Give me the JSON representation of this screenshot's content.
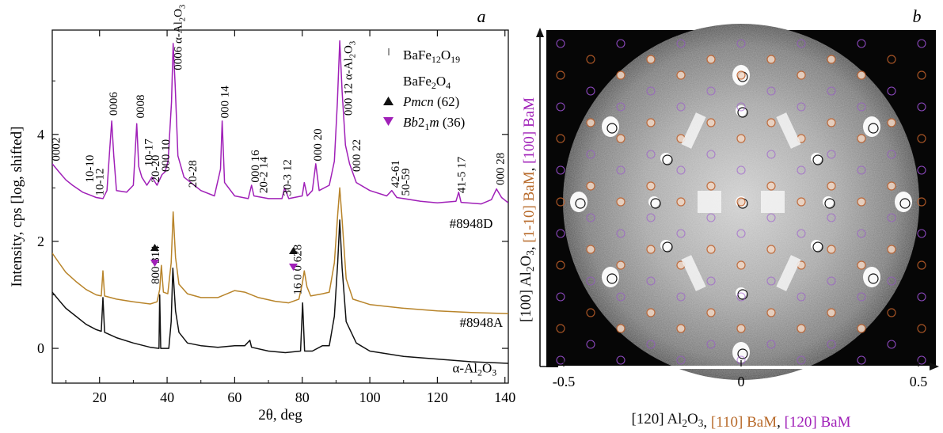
{
  "panels": {
    "a_label": "a",
    "b_label": "b"
  },
  "chart_data": [
    {
      "type": "line",
      "panel": "a",
      "xlabel": "2θ, deg",
      "ylabel": "Intensity, cps [log, shifted]",
      "xlim": [
        6,
        141
      ],
      "ylim": [
        -0.65,
        5.95
      ],
      "xticks": [
        20,
        40,
        60,
        80,
        100,
        120,
        140
      ],
      "yticks": [
        0,
        2,
        4
      ],
      "series": [
        {
          "name": "#8948D",
          "color": "#a020b8",
          "points": [
            [
              6,
              3.45
            ],
            [
              8,
              3.3
            ],
            [
              10,
              3.15
            ],
            [
              12,
              3.05
            ],
            [
              15,
              2.92
            ],
            [
              17,
              2.87
            ],
            [
              19,
              2.82
            ],
            [
              21,
              2.8
            ],
            [
              22.2,
              2.95
            ],
            [
              23,
              3.7
            ],
            [
              23.6,
              4.25
            ],
            [
              24.2,
              3.6
            ],
            [
              25,
              2.95
            ],
            [
              28,
              2.92
            ],
            [
              30,
              3.05
            ],
            [
              31,
              4.2
            ],
            [
              31.6,
              3.4
            ],
            [
              32.5,
              3.2
            ],
            [
              34,
              3.05
            ],
            [
              35.5,
              3.2
            ],
            [
              37,
              3.05
            ],
            [
              38.5,
              3.25
            ],
            [
              39.4,
              3.3
            ],
            [
              40.3,
              3.5
            ],
            [
              41.3,
              4.6
            ],
            [
              41.8,
              5.7
            ],
            [
              42.4,
              4.9
            ],
            [
              43.2,
              3.6
            ],
            [
              45,
              3.2
            ],
            [
              50,
              2.95
            ],
            [
              54,
              2.85
            ],
            [
              55.8,
              3.35
            ],
            [
              56.3,
              4.25
            ],
            [
              57,
              3.1
            ],
            [
              60,
              2.85
            ],
            [
              64,
              2.8
            ],
            [
              65,
              3.05
            ],
            [
              65.7,
              2.85
            ],
            [
              70,
              2.8
            ],
            [
              74,
              2.8
            ],
            [
              74.8,
              3.0
            ],
            [
              76,
              2.8
            ],
            [
              80,
              2.85
            ],
            [
              80.6,
              3.1
            ],
            [
              81.5,
              2.85
            ],
            [
              83,
              2.95
            ],
            [
              84,
              3.45
            ],
            [
              85,
              2.95
            ],
            [
              88,
              3.05
            ],
            [
              89.5,
              3.5
            ],
            [
              90.4,
              4.6
            ],
            [
              91.1,
              5.75
            ],
            [
              91.8,
              4.8
            ],
            [
              92.8,
              3.8
            ],
            [
              94,
              3.45
            ],
            [
              96,
              3.1
            ],
            [
              100,
              2.95
            ],
            [
              105,
              2.85
            ],
            [
              106.5,
              2.95
            ],
            [
              108,
              2.82
            ],
            [
              115,
              2.75
            ],
            [
              120,
              2.72
            ],
            [
              125.5,
              2.75
            ],
            [
              126.3,
              2.92
            ],
            [
              127,
              2.73
            ],
            [
              133,
              2.7
            ],
            [
              136,
              2.78
            ],
            [
              137.5,
              2.98
            ],
            [
              139,
              2.82
            ],
            [
              141,
              2.72
            ]
          ]
        },
        {
          "name": "#8948A",
          "color": "#b8842a",
          "points": [
            [
              6,
              1.78
            ],
            [
              8,
              1.6
            ],
            [
              10,
              1.42
            ],
            [
              13,
              1.25
            ],
            [
              16,
              1.1
            ],
            [
              19,
              1.0
            ],
            [
              20.5,
              0.98
            ],
            [
              21,
              1.45
            ],
            [
              21.5,
              0.98
            ],
            [
              25,
              0.92
            ],
            [
              30,
              0.87
            ],
            [
              35,
              0.83
            ],
            [
              37,
              0.87
            ],
            [
              37.8,
              1.1
            ],
            [
              38.3,
              1.55
            ],
            [
              38.9,
              1.05
            ],
            [
              40.2,
              1.02
            ],
            [
              41.2,
              1.6
            ],
            [
              41.8,
              2.55
            ],
            [
              42.5,
              1.7
            ],
            [
              43.5,
              1.2
            ],
            [
              46,
              1.02
            ],
            [
              50,
              0.95
            ],
            [
              55,
              0.95
            ],
            [
              60,
              1.08
            ],
            [
              63,
              1.05
            ],
            [
              67,
              0.95
            ],
            [
              72,
              0.88
            ],
            [
              76,
              0.85
            ],
            [
              79,
              0.92
            ],
            [
              80,
              1.2
            ],
            [
              80.6,
              1.45
            ],
            [
              81.4,
              1.15
            ],
            [
              82.5,
              0.98
            ],
            [
              86,
              1.02
            ],
            [
              88,
              1.05
            ],
            [
              89.5,
              1.6
            ],
            [
              90.5,
              2.5
            ],
            [
              91.1,
              3.0
            ],
            [
              91.8,
              2.4
            ],
            [
              93,
              1.3
            ],
            [
              95,
              0.92
            ],
            [
              100,
              0.82
            ],
            [
              110,
              0.75
            ],
            [
              120,
              0.7
            ],
            [
              130,
              0.67
            ],
            [
              141,
              0.65
            ]
          ]
        },
        {
          "name": "α-Al2O3",
          "color": "#111111",
          "points": [
            [
              6,
              1.05
            ],
            [
              8,
              0.9
            ],
            [
              10,
              0.75
            ],
            [
              13,
              0.6
            ],
            [
              16,
              0.45
            ],
            [
              19,
              0.35
            ],
            [
              20.5,
              0.32
            ],
            [
              21,
              0.95
            ],
            [
              21.5,
              0.3
            ],
            [
              25,
              0.2
            ],
            [
              30,
              0.1
            ],
            [
              35,
              0.02
            ],
            [
              37.6,
              0.0
            ],
            [
              37.8,
              1.0
            ],
            [
              38.1,
              0.0
            ],
            [
              40.5,
              0.0
            ],
            [
              41.2,
              0.5
            ],
            [
              41.7,
              1.5
            ],
            [
              42.5,
              0.7
            ],
            [
              43.5,
              0.3
            ],
            [
              46,
              0.1
            ],
            [
              50,
              0.05
            ],
            [
              55,
              0.02
            ],
            [
              60,
              0.05
            ],
            [
              63,
              0.05
            ],
            [
              64.5,
              0.15
            ],
            [
              65,
              0.02
            ],
            [
              70,
              -0.05
            ],
            [
              75,
              -0.08
            ],
            [
              79.5,
              -0.05
            ],
            [
              80.1,
              0.85
            ],
            [
              80.7,
              -0.05
            ],
            [
              83,
              -0.05
            ],
            [
              86,
              0.05
            ],
            [
              88,
              0.05
            ],
            [
              89.5,
              0.6
            ],
            [
              90.5,
              1.6
            ],
            [
              91.1,
              2.4
            ],
            [
              91.8,
              1.5
            ],
            [
              93,
              0.5
            ],
            [
              96,
              0.1
            ],
            [
              100,
              -0.05
            ],
            [
              110,
              -0.15
            ],
            [
              120,
              -0.2
            ],
            [
              130,
              -0.25
            ],
            [
              141,
              -0.28
            ]
          ]
        }
      ],
      "legend": [
        {
          "marker": "tick",
          "text": "BaFe12O19"
        },
        {
          "marker": "none",
          "text": "BaFe2O4"
        },
        {
          "marker": "up-triangle",
          "color": "#111111",
          "text": "Pmcn (62)"
        },
        {
          "marker": "down-triangle",
          "color": "#a020b8",
          "text": "Bb21m (36)"
        }
      ],
      "annotations": [
        {
          "text": "0002",
          "x": 7,
          "y": 3.5
        },
        {
          "text": "10-10",
          "x": 17,
          "y": 3.1
        },
        {
          "text": "10-12",
          "x": 20,
          "y": 2.85
        },
        {
          "text": "0006",
          "x": 24,
          "y": 4.35
        },
        {
          "text": "0008",
          "x": 32,
          "y": 4.3
        },
        {
          "text": "10-17",
          "x": 34.5,
          "y": 3.4
        },
        {
          "text": "20-20",
          "x": 36.5,
          "y": 3.1
        },
        {
          "text": "000 10",
          "x": 39.5,
          "y": 3.3
        },
        {
          "text": "0006 α-Al2O3",
          "x": 43.2,
          "y": 5.2
        },
        {
          "text": "20-28",
          "x": 47.5,
          "y": 3.0
        },
        {
          "text": "000 14",
          "x": 57,
          "y": 4.3
        },
        {
          "text": "000 16",
          "x": 66,
          "y": 3.1
        },
        {
          "text": "20-2 14",
          "x": 68.5,
          "y": 2.9
        },
        {
          "text": "30-3 12",
          "x": 75.5,
          "y": 2.85
        },
        {
          "text": "000 20",
          "x": 84.5,
          "y": 3.5
        },
        {
          "text": "000 12 α-Al2O3",
          "x": 93.5,
          "y": 4.35
        },
        {
          "text": "000 22",
          "x": 96,
          "y": 3.3
        },
        {
          "text": "42-61",
          "x": 107.5,
          "y": 3.0
        },
        {
          "text": "50-59",
          "x": 110.5,
          "y": 2.85
        },
        {
          "text": "41-5 17",
          "x": 127,
          "y": 2.9
        },
        {
          "text": "000 28",
          "x": 138.5,
          "y": 3.05
        },
        {
          "text": "800 314",
          "x": 36.5,
          "y": 1.2
        },
        {
          "text": "16 0 0 628",
          "x": 78.5,
          "y": 1.0
        },
        {
          "text": "#8948D",
          "x": 130,
          "y": 2.25
        },
        {
          "text": "#8948A",
          "x": 133,
          "y": 0.4
        },
        {
          "text": "α-Al2O3",
          "x": 131,
          "y": -0.45
        }
      ]
    },
    {
      "type": "diffraction-pattern",
      "panel": "b",
      "xlabel_parts": [
        {
          "text": "[120] Al2O3, ",
          "color": "#111111"
        },
        {
          "text": "[110] BaM",
          "color": "#b86a2a"
        },
        {
          "text": ", ",
          "color": "#111111"
        },
        {
          "text": "[120] BaM",
          "color": "#a020b8"
        }
      ],
      "ylabel_parts": [
        {
          "text": "[100] Al2O3, ",
          "color": "#111111"
        },
        {
          "text": "[1-10] BaM",
          "color": "#b86a2a"
        },
        {
          "text": ", ",
          "color": "#111111"
        },
        {
          "text": "[100] BaM",
          "color": "#a020b8"
        }
      ],
      "xlim": [
        -0.55,
        0.55
      ],
      "xtick_labels": [
        "-0.5",
        "0",
        "0.5"
      ],
      "xticks": [
        -0.5,
        0,
        0.5
      ],
      "spot_colors": {
        "al2o3": "#111111",
        "bam_110": "#c0602a",
        "bam_120": "#9a50d0"
      }
    }
  ]
}
